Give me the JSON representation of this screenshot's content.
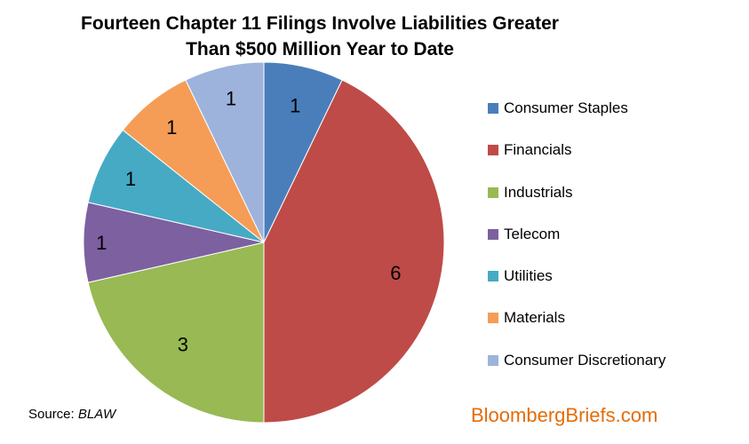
{
  "chart_data": {
    "type": "pie",
    "title": "Fourteen Chapter 11 Filings Involve Liabilities Greater",
    "subtitle": "Than $500 Million Year to Date",
    "categories": [
      "Consumer Staples",
      "Financials",
      "Industrials",
      "Telecom",
      "Utilities",
      "Materials",
      "Consumer Discretionary"
    ],
    "values": [
      1,
      6,
      3,
      1,
      1,
      1,
      1
    ],
    "data_labels": [
      "1",
      "6",
      "3",
      "1",
      "1",
      "1",
      "1"
    ],
    "colors": [
      "#4a7ebb",
      "#be4b48",
      "#98b954",
      "#7d60a0",
      "#46aac5",
      "#f59d56",
      "#9db3dc"
    ],
    "start_angle_deg": 0,
    "direction": "clockwise",
    "legend_position": "right"
  },
  "footer": {
    "source_prefix": "Source: ",
    "source_name": "BLAW",
    "brand": "BloombergBriefs.com"
  }
}
